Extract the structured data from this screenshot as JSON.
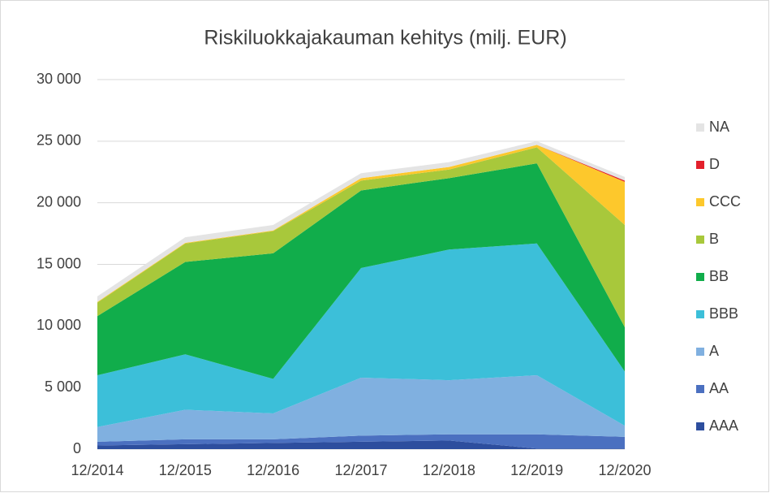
{
  "chart_data": {
    "type": "stacked_area",
    "title": "Riskiluokkajakauman kehitys (milj. EUR)",
    "categories": [
      "12/2014",
      "12/2015",
      "12/2016",
      "12/2017",
      "12/2018",
      "12/2019",
      "12/2020"
    ],
    "series": [
      {
        "name": "AAA",
        "color": "#2d4e9e",
        "values": [
          300,
          400,
          500,
          600,
          700,
          50,
          50
        ]
      },
      {
        "name": "AA",
        "color": "#4b70c0",
        "values": [
          300,
          400,
          300,
          500,
          500,
          1150,
          950
        ]
      },
      {
        "name": "A",
        "color": "#80b0e0",
        "values": [
          1200,
          2400,
          2100,
          4700,
          4400,
          4800,
          900
        ]
      },
      {
        "name": "BBB",
        "color": "#3cbfd9",
        "values": [
          4200,
          4500,
          2800,
          8900,
          10600,
          10700,
          4400
        ]
      },
      {
        "name": "BB",
        "color": "#11ad4b",
        "values": [
          4800,
          7500,
          10200,
          6300,
          5800,
          6500,
          3600
        ]
      },
      {
        "name": "B",
        "color": "#a8c83b",
        "values": [
          1100,
          1500,
          1800,
          800,
          700,
          1300,
          8300
        ]
      },
      {
        "name": "CCC",
        "color": "#fdc82c",
        "values": [
          50,
          50,
          50,
          200,
          200,
          200,
          3500
        ]
      },
      {
        "name": "D",
        "color": "#e3202b",
        "values": [
          0,
          0,
          0,
          0,
          0,
          0,
          100
        ]
      },
      {
        "name": "NA",
        "color": "#e4e4e4",
        "values": [
          450,
          450,
          450,
          400,
          400,
          300,
          300
        ]
      }
    ],
    "ylim": [
      0,
      30000
    ],
    "yticks": [
      {
        "value": 0,
        "label": "0"
      },
      {
        "value": 5000,
        "label": "5 000"
      },
      {
        "value": 10000,
        "label": "10 000"
      },
      {
        "value": 15000,
        "label": "15 000"
      },
      {
        "value": 20000,
        "label": "20 000"
      },
      {
        "value": 25000,
        "label": "25 000"
      },
      {
        "value": 30000,
        "label": "30 000"
      }
    ],
    "grid": true,
    "legend": "right"
  }
}
